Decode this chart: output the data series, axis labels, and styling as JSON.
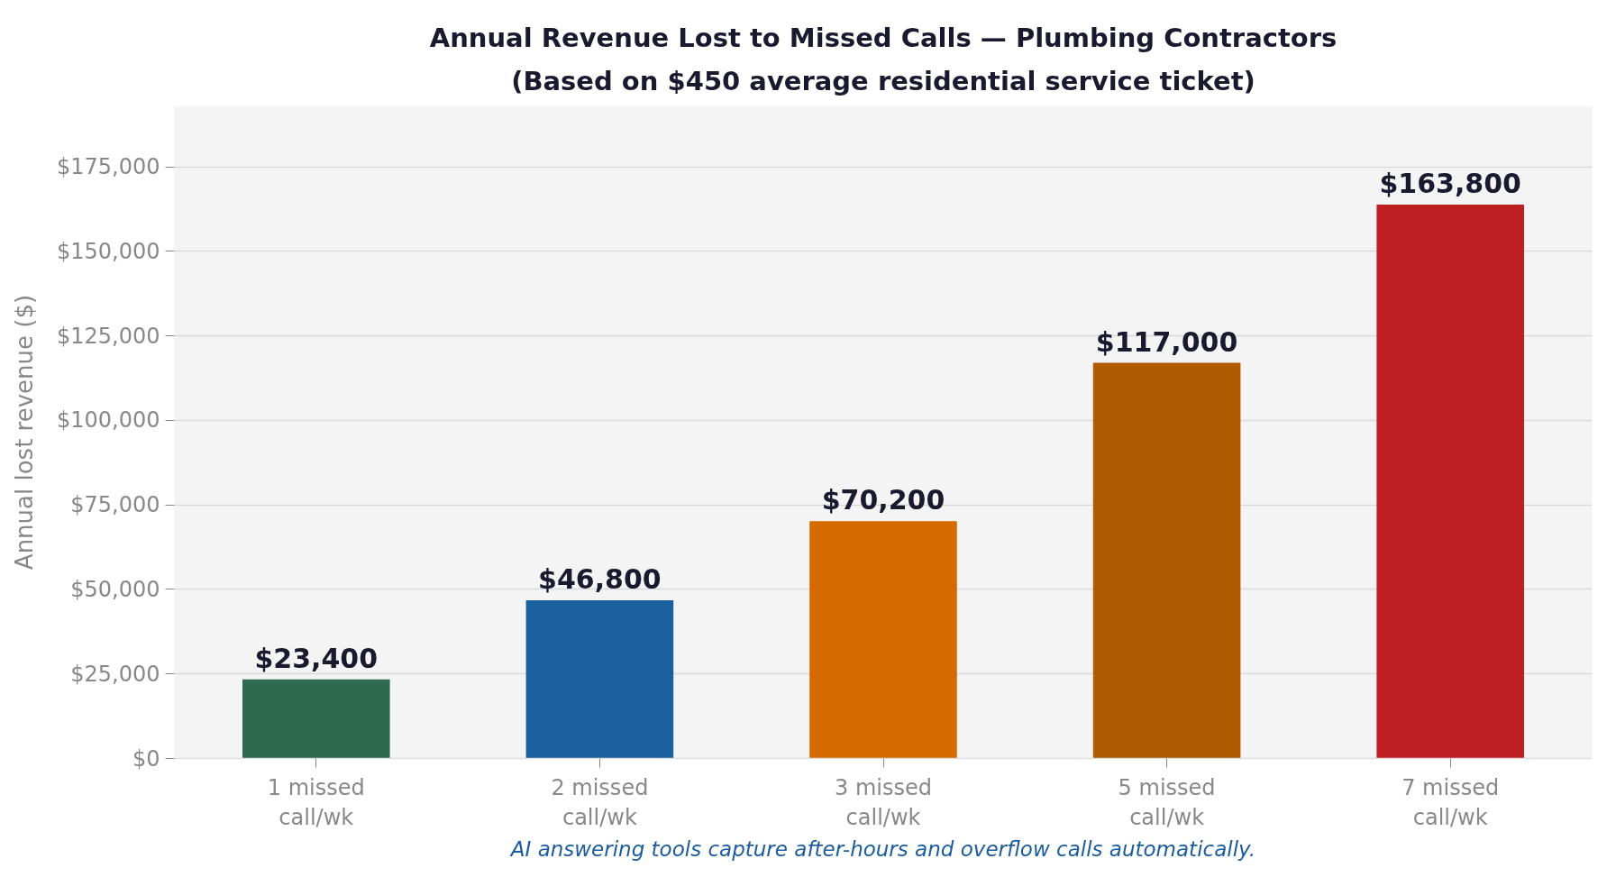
{
  "chart_data": {
    "type": "bar",
    "title": "Annual Revenue Lost to Missed Calls — Plumbing Contractors",
    "subtitle": "(Based on $450 average residential service ticket)",
    "ylabel": "Annual lost revenue ($)",
    "categories": [
      "1 missed\ncall/wk",
      "2 missed\ncall/wk",
      "3 missed\ncall/wk",
      "5 missed\ncall/wk",
      "7 missed\ncall/wk"
    ],
    "values": [
      23400,
      46800,
      70200,
      117000,
      163800
    ],
    "colors": [
      "#2d6a4f",
      "#1a5f9e",
      "#d46a00",
      "#ad5a00",
      "#be1f22"
    ],
    "value_labels": [
      "$23,400",
      "$46,800",
      "$70,200",
      "$117,000",
      "$163,800"
    ],
    "ylim": [
      0,
      193000
    ],
    "yticks": [
      {
        "value": 0,
        "label": "$0"
      },
      {
        "value": 25000,
        "label": "$25,000"
      },
      {
        "value": 50000,
        "label": "$50,000"
      },
      {
        "value": 75000,
        "label": "$75,000"
      },
      {
        "value": 100000,
        "label": "$100,000"
      },
      {
        "value": 125000,
        "label": "$125,000"
      },
      {
        "value": 150000,
        "label": "$150,000"
      },
      {
        "value": 175000,
        "label": "$175,000"
      }
    ],
    "grid": "y",
    "annotations": [
      "AI answering tools capture after-hours and overflow calls automatically."
    ]
  }
}
